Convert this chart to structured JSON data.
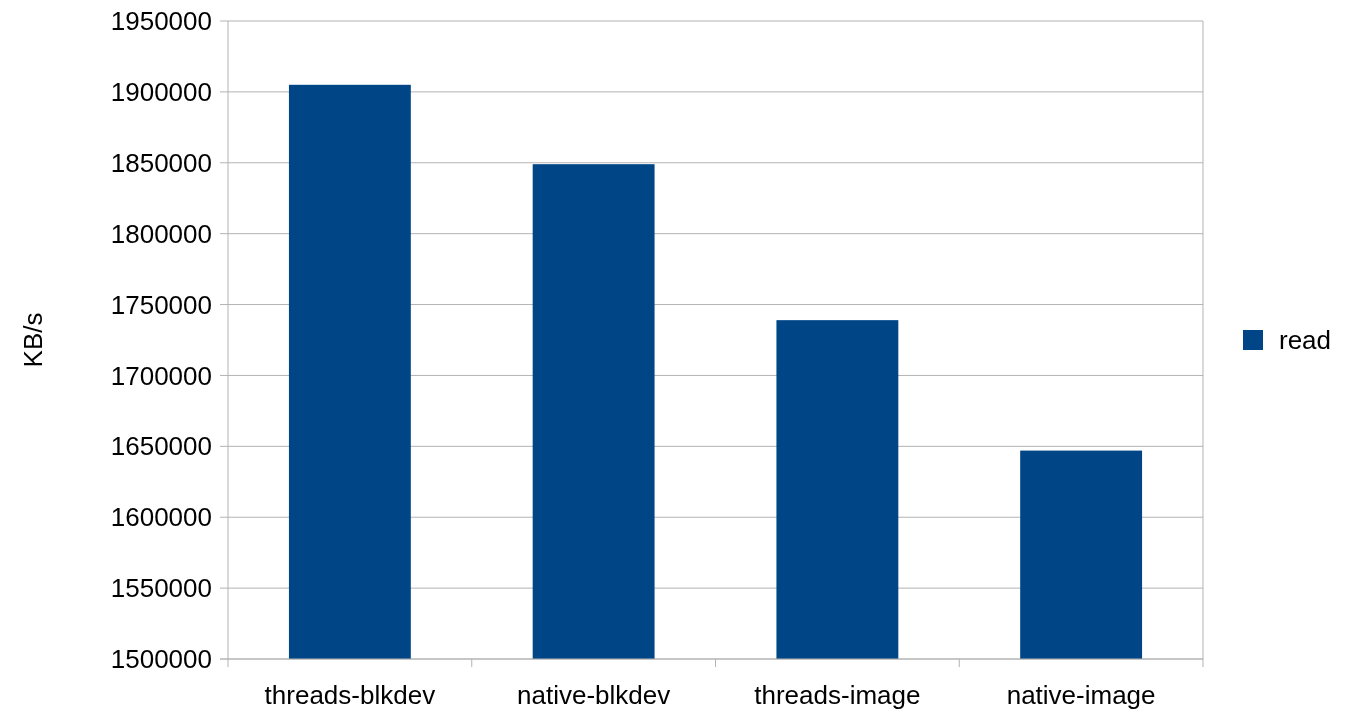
{
  "chart_data": {
    "type": "bar",
    "ylabel": "KB/s",
    "categories": [
      "threads-blkdev",
      "native-blkdev",
      "threads-image",
      "native-image"
    ],
    "series": [
      {
        "name": "read",
        "color": "#004586",
        "values": [
          1905000,
          1849000,
          1739000,
          1647000
        ]
      }
    ],
    "ylim": [
      1500000,
      1950000
    ],
    "yticks": [
      1500000,
      1550000,
      1600000,
      1650000,
      1700000,
      1750000,
      1800000,
      1850000,
      1900000,
      1950000
    ],
    "grid": "y",
    "legend": "right"
  }
}
